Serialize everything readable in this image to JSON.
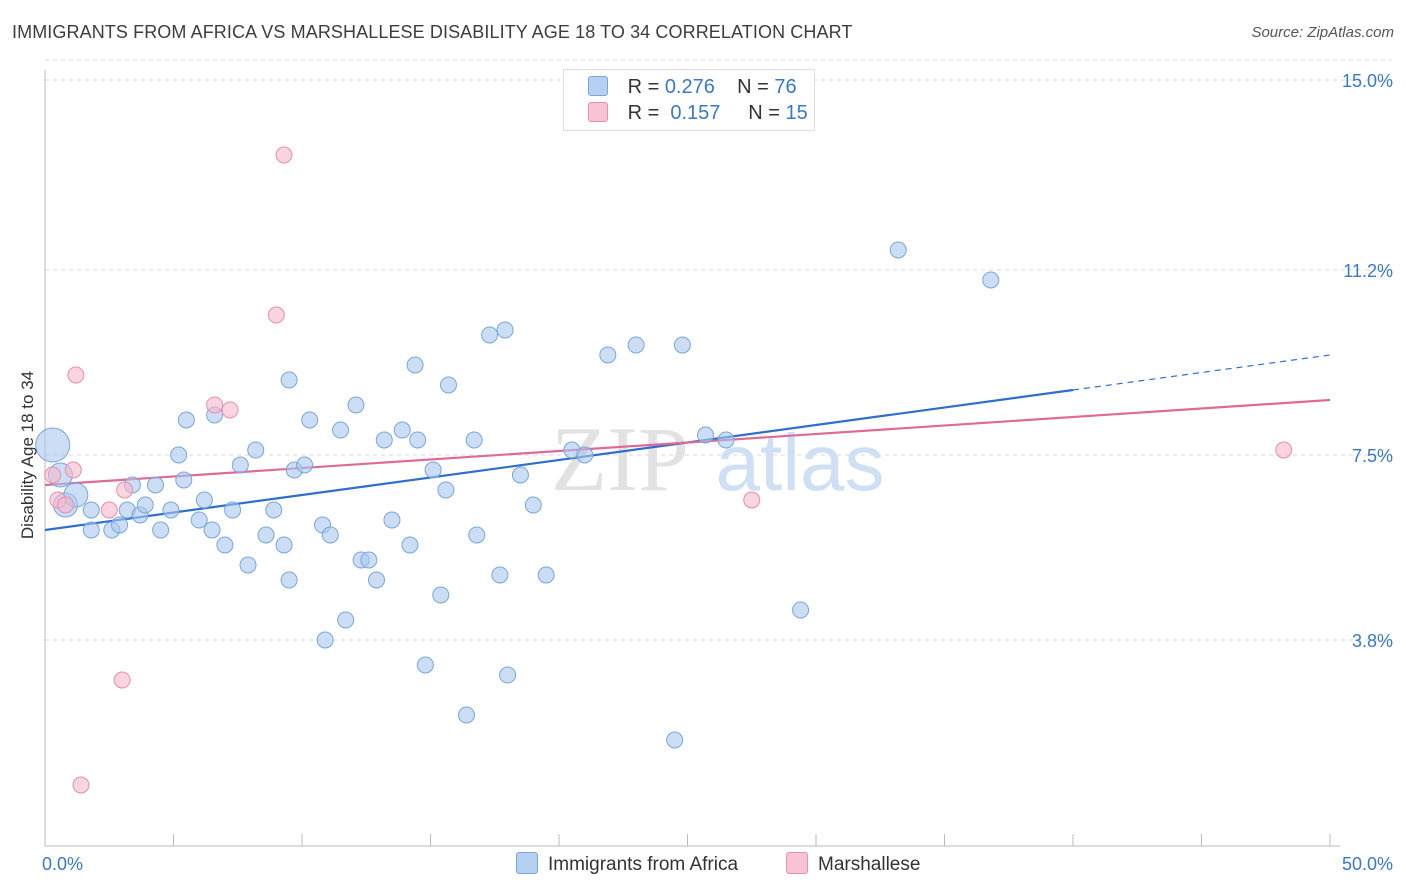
{
  "title": "IMMIGRANTS FROM AFRICA VS MARSHALLESE DISABILITY AGE 18 TO 34 CORRELATION CHART",
  "source": "Source: ZipAtlas.com",
  "watermark": {
    "zip": "ZIP",
    "atlas": "atlas"
  },
  "legend": {
    "rows": [
      {
        "r_label": "R =",
        "r_value": "0.276",
        "n_label": "N =",
        "n_value": "76"
      },
      {
        "r_label": "R =",
        "r_value": "0.157",
        "n_label": "N =",
        "n_value": "15"
      }
    ]
  },
  "bottom_legend": {
    "series1": "Immigrants from Africa",
    "series2": "Marshallese"
  },
  "colors": {
    "blue_fill": "#a9c8f0",
    "blue_stroke": "#7aa6dc",
    "blue_line": "#2e6fce",
    "pink_fill": "#f6b7cb",
    "pink_stroke": "#e98fac",
    "pink_line": "#e06a97",
    "tick_label": "#3a78c9",
    "grid": "#d8d8d8"
  },
  "chart_data": {
    "type": "scatter",
    "title": "IMMIGRANTS FROM AFRICA VS MARSHALLESE DISABILITY AGE 18 TO 34 CORRELATION CHART",
    "xlabel": "",
    "ylabel": "Disability Age 18 to 34",
    "xlim": [
      0,
      50
    ],
    "ylim": [
      0,
      15.4
    ],
    "x_tick_labels": [
      "0.0%",
      "50.0%"
    ],
    "y_ticks": [
      3.8,
      7.5,
      11.2,
      15.0
    ],
    "y_tick_labels": [
      "3.8%",
      "7.5%",
      "11.2%",
      "15.0%"
    ],
    "grid": "horizontal dashed",
    "legend_placement": "top-center",
    "series": [
      {
        "name": "Immigrants from Africa",
        "r": 0.276,
        "n": 76,
        "trend": {
          "x0": 0,
          "y0": 6.0,
          "x1": 40,
          "y1": 8.8,
          "dashed_to_x": 50,
          "dashed_to_y": 9.5
        },
        "points": [
          {
            "x": 0.3,
            "y": 7.7,
            "s": 3
          },
          {
            "x": 0.6,
            "y": 7.1,
            "s": 2
          },
          {
            "x": 0.8,
            "y": 6.5,
            "s": 2
          },
          {
            "x": 1.2,
            "y": 6.7,
            "s": 2
          },
          {
            "x": 1.8,
            "y": 6.4,
            "s": 1
          },
          {
            "x": 1.8,
            "y": 6.0,
            "s": 1
          },
          {
            "x": 2.6,
            "y": 6.0,
            "s": 1
          },
          {
            "x": 2.9,
            "y": 6.1,
            "s": 1
          },
          {
            "x": 3.2,
            "y": 6.4,
            "s": 1
          },
          {
            "x": 3.4,
            "y": 6.9,
            "s": 1
          },
          {
            "x": 3.7,
            "y": 6.3,
            "s": 1
          },
          {
            "x": 3.9,
            "y": 6.5,
            "s": 1
          },
          {
            "x": 4.3,
            "y": 6.9,
            "s": 1
          },
          {
            "x": 4.5,
            "y": 6.0,
            "s": 1
          },
          {
            "x": 4.9,
            "y": 6.4,
            "s": 1
          },
          {
            "x": 5.2,
            "y": 7.5,
            "s": 1
          },
          {
            "x": 5.4,
            "y": 7.0,
            "s": 1
          },
          {
            "x": 5.5,
            "y": 8.2,
            "s": 1
          },
          {
            "x": 6.0,
            "y": 6.2,
            "s": 1
          },
          {
            "x": 6.2,
            "y": 6.6,
            "s": 1
          },
          {
            "x": 6.5,
            "y": 6.0,
            "s": 1
          },
          {
            "x": 6.6,
            "y": 8.3,
            "s": 1
          },
          {
            "x": 7.0,
            "y": 5.7,
            "s": 1
          },
          {
            "x": 7.3,
            "y": 6.4,
            "s": 1
          },
          {
            "x": 7.6,
            "y": 7.3,
            "s": 1
          },
          {
            "x": 7.9,
            "y": 5.3,
            "s": 1
          },
          {
            "x": 8.2,
            "y": 7.6,
            "s": 1
          },
          {
            "x": 8.6,
            "y": 5.9,
            "s": 1
          },
          {
            "x": 8.9,
            "y": 6.4,
            "s": 1
          },
          {
            "x": 9.3,
            "y": 5.7,
            "s": 1
          },
          {
            "x": 9.5,
            "y": 5.0,
            "s": 1
          },
          {
            "x": 9.5,
            "y": 9.0,
            "s": 1
          },
          {
            "x": 9.7,
            "y": 7.2,
            "s": 1
          },
          {
            "x": 10.1,
            "y": 7.3,
            "s": 1
          },
          {
            "x": 10.3,
            "y": 8.2,
            "s": 1
          },
          {
            "x": 10.8,
            "y": 6.1,
            "s": 1
          },
          {
            "x": 10.9,
            "y": 3.8,
            "s": 1
          },
          {
            "x": 11.1,
            "y": 5.9,
            "s": 1
          },
          {
            "x": 11.5,
            "y": 8.0,
            "s": 1
          },
          {
            "x": 11.7,
            "y": 4.2,
            "s": 1
          },
          {
            "x": 12.1,
            "y": 8.5,
            "s": 1
          },
          {
            "x": 12.3,
            "y": 5.4,
            "s": 1
          },
          {
            "x": 12.6,
            "y": 5.4,
            "s": 1
          },
          {
            "x": 12.9,
            "y": 5.0,
            "s": 1
          },
          {
            "x": 13.2,
            "y": 7.8,
            "s": 1
          },
          {
            "x": 13.5,
            "y": 6.2,
            "s": 1
          },
          {
            "x": 13.9,
            "y": 8.0,
            "s": 1
          },
          {
            "x": 14.2,
            "y": 5.7,
            "s": 1
          },
          {
            "x": 14.4,
            "y": 9.3,
            "s": 1
          },
          {
            "x": 14.5,
            "y": 7.8,
            "s": 1
          },
          {
            "x": 14.8,
            "y": 3.3,
            "s": 1
          },
          {
            "x": 15.1,
            "y": 7.2,
            "s": 1
          },
          {
            "x": 15.4,
            "y": 4.7,
            "s": 1
          },
          {
            "x": 15.6,
            "y": 6.8,
            "s": 1
          },
          {
            "x": 15.7,
            "y": 8.9,
            "s": 1
          },
          {
            "x": 16.4,
            "y": 2.3,
            "s": 1
          },
          {
            "x": 16.7,
            "y": 7.8,
            "s": 1
          },
          {
            "x": 16.8,
            "y": 5.9,
            "s": 1
          },
          {
            "x": 17.3,
            "y": 9.9,
            "s": 1
          },
          {
            "x": 17.7,
            "y": 5.1,
            "s": 1
          },
          {
            "x": 17.9,
            "y": 10.0,
            "s": 1
          },
          {
            "x": 18.0,
            "y": 3.1,
            "s": 1
          },
          {
            "x": 18.5,
            "y": 7.1,
            "s": 1
          },
          {
            "x": 19.0,
            "y": 6.5,
            "s": 1
          },
          {
            "x": 19.5,
            "y": 5.1,
            "s": 1
          },
          {
            "x": 20.5,
            "y": 7.6,
            "s": 1
          },
          {
            "x": 21.0,
            "y": 7.5,
            "s": 1
          },
          {
            "x": 21.9,
            "y": 9.5,
            "s": 1
          },
          {
            "x": 23.0,
            "y": 9.7,
            "s": 1
          },
          {
            "x": 24.5,
            "y": 1.8,
            "s": 1
          },
          {
            "x": 24.8,
            "y": 9.7,
            "s": 1
          },
          {
            "x": 25.7,
            "y": 7.9,
            "s": 1
          },
          {
            "x": 29.4,
            "y": 4.4,
            "s": 1
          },
          {
            "x": 33.2,
            "y": 11.6,
            "s": 1
          },
          {
            "x": 36.8,
            "y": 11.0,
            "s": 1
          },
          {
            "x": 26.5,
            "y": 7.8,
            "s": 1
          }
        ]
      },
      {
        "name": "Marshallese",
        "r": 0.157,
        "n": 15,
        "trend": {
          "x0": 0,
          "y0": 6.9,
          "x1": 50,
          "y1": 8.6
        },
        "points": [
          {
            "x": 0.3,
            "y": 7.1,
            "s": 1
          },
          {
            "x": 0.5,
            "y": 6.6,
            "s": 1
          },
          {
            "x": 0.8,
            "y": 6.5,
            "s": 1
          },
          {
            "x": 1.1,
            "y": 7.2,
            "s": 1
          },
          {
            "x": 1.2,
            "y": 9.1,
            "s": 1
          },
          {
            "x": 1.4,
            "y": 0.9,
            "s": 1
          },
          {
            "x": 2.5,
            "y": 6.4,
            "s": 1
          },
          {
            "x": 3.0,
            "y": 3.0,
            "s": 1
          },
          {
            "x": 3.1,
            "y": 6.8,
            "s": 1
          },
          {
            "x": 6.6,
            "y": 8.5,
            "s": 1
          },
          {
            "x": 7.2,
            "y": 8.4,
            "s": 1
          },
          {
            "x": 9.0,
            "y": 10.3,
            "s": 1
          },
          {
            "x": 9.3,
            "y": 13.5,
            "s": 1
          },
          {
            "x": 27.5,
            "y": 6.6,
            "s": 1
          },
          {
            "x": 48.2,
            "y": 7.6,
            "s": 1
          }
        ]
      }
    ]
  }
}
